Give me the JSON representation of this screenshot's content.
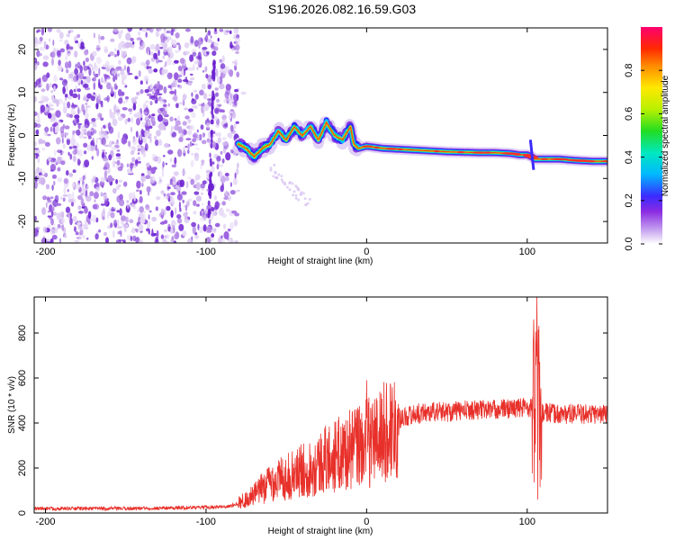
{
  "title": "S196.2026.082.16.59.G03",
  "chart_data": [
    {
      "type": "heatmap",
      "xlabel": "Height of straight line (km)",
      "ylabel": "Frequency (Hz)",
      "xlim": [
        -207,
        150
      ],
      "ylim": [
        -25,
        25
      ],
      "x_ticks": [
        -200,
        -100,
        0,
        100
      ],
      "y_ticks": [
        -20,
        -10,
        0,
        10,
        20
      ],
      "ridge": {
        "x": [
          -80,
          -75,
          -70,
          -65,
          -60,
          -55,
          -50,
          -45,
          -40,
          -35,
          -30,
          -25,
          -20,
          -15,
          -10,
          -8,
          -5,
          0,
          10,
          20,
          30,
          40,
          50,
          60,
          70,
          80,
          90,
          95,
          100,
          103,
          105,
          110,
          120,
          130,
          140,
          150
        ],
        "y": [
          -2,
          -3,
          -5,
          -3,
          -2,
          1,
          -1,
          2,
          0,
          2,
          -1,
          3,
          0,
          -1,
          2,
          -2,
          -3,
          -2.5,
          -3,
          -3.2,
          -3.4,
          -3.6,
          -3.8,
          -3.9,
          -4,
          -4,
          -4.2,
          -4.5,
          -4.5,
          -5,
          -5.5,
          -5.5,
          -5.5,
          -5.8,
          -6,
          -6
        ]
      },
      "colorbar": {
        "label": "Normalized spectral amplitude",
        "range": [
          0,
          1
        ],
        "ticks": [
          0.0,
          0.2,
          0.4,
          0.6,
          0.8
        ]
      }
    },
    {
      "type": "line",
      "xlabel": "Height of straight line (km)",
      "ylabel": "SNR (10 * v/v)",
      "xlim": [
        -207,
        150
      ],
      "ylim": [
        0,
        960
      ],
      "x_ticks": [
        -200,
        -100,
        0,
        100
      ],
      "y_ticks": [
        0,
        200,
        400,
        600,
        800
      ],
      "color": "#e8302a",
      "envelope": {
        "x": [
          -207,
          -150,
          -100,
          -85,
          -80,
          -75,
          -70,
          -65,
          -60,
          -55,
          -50,
          -45,
          -40,
          -35,
          -30,
          -25,
          -20,
          -15,
          -10,
          -5,
          0,
          5,
          10,
          15,
          20,
          30,
          40,
          50,
          60,
          70,
          80,
          90,
          100,
          103,
          105,
          106,
          107,
          108,
          110,
          120,
          130,
          140,
          150
        ],
        "y": [
          20,
          20,
          25,
          30,
          45,
          60,
          80,
          110,
          140,
          150,
          160,
          170,
          190,
          200,
          220,
          240,
          250,
          270,
          280,
          300,
          310,
          330,
          350,
          380,
          420,
          440,
          450,
          450,
          455,
          460,
          460,
          465,
          470,
          470,
          460,
          520,
          520,
          440,
          445,
          440,
          440,
          440,
          440
        ]
      },
      "spikes": [
        {
          "x": 0,
          "y": 590
        },
        {
          "x": 104,
          "y": 860
        },
        {
          "x": 106,
          "y": 960
        },
        {
          "x": 106.5,
          "y": 60
        }
      ]
    }
  ]
}
